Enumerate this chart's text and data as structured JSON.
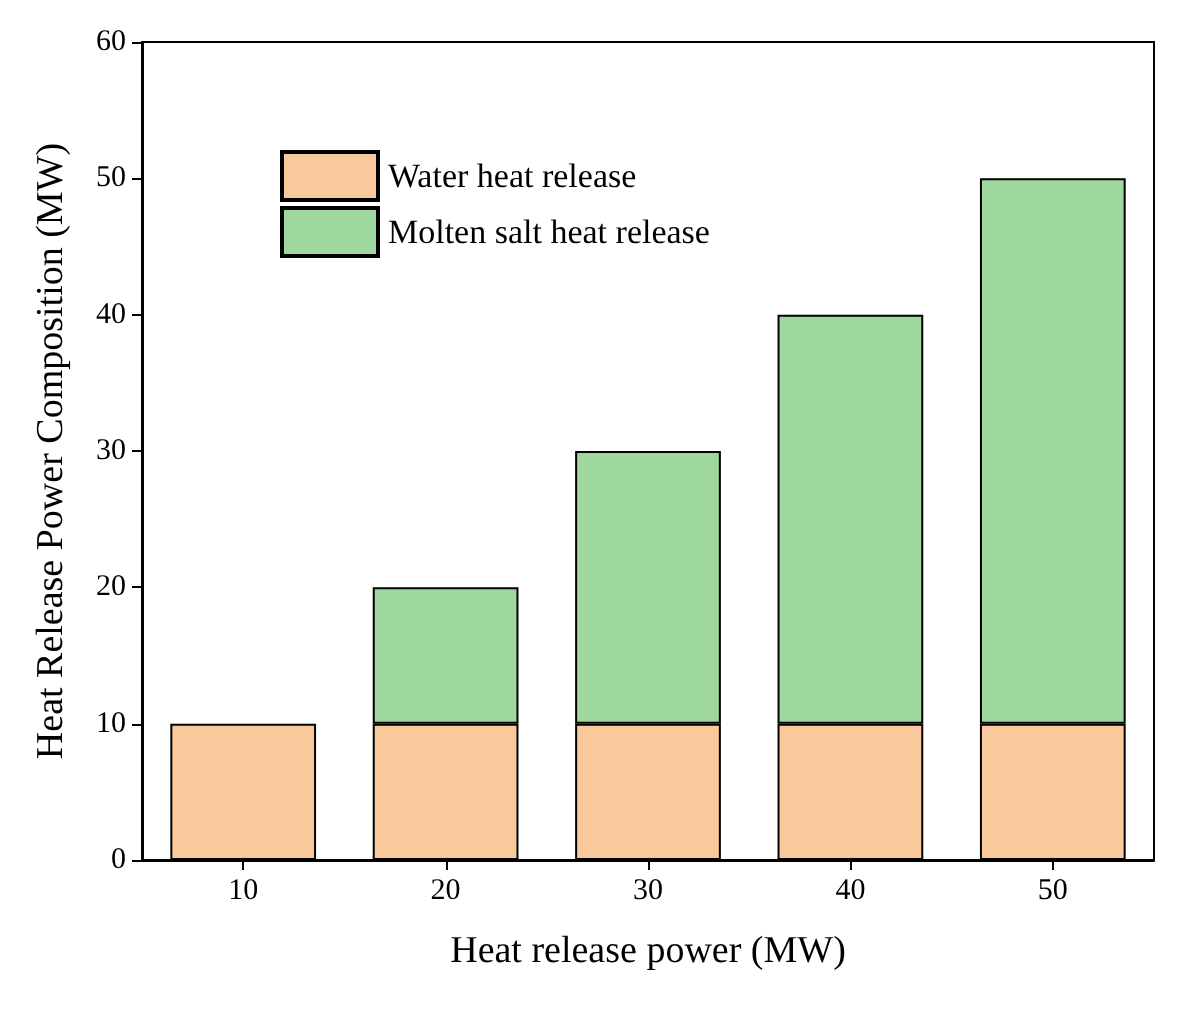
{
  "chart_data": {
    "type": "bar",
    "stacked": true,
    "xlabel": "Heat release power (MW)",
    "ylabel": "Heat Release Power Composition (MW)",
    "categories": [
      "10",
      "20",
      "30",
      "40",
      "50"
    ],
    "series": [
      {
        "name": "Water heat release",
        "color": "#f9c89b",
        "values": [
          10,
          10,
          10,
          10,
          10
        ]
      },
      {
        "name": "Molten salt heat release",
        "color": "#9ed89e",
        "values": [
          0,
          10,
          20,
          30,
          40
        ]
      }
    ],
    "ylim": [
      0,
      60
    ],
    "yticks": [
      0,
      10,
      20,
      30,
      40,
      50,
      60
    ],
    "grid": false,
    "legend": "top left"
  }
}
